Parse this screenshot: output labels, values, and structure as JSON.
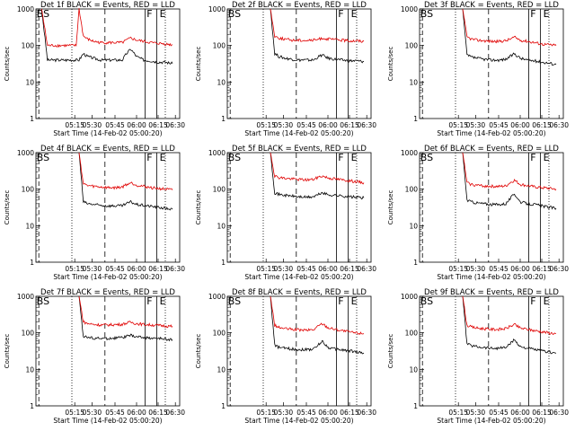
{
  "figure": {
    "time_axis_label": "Start Time (14-Feb-02 05:00:20)",
    "y_axis_label": "Counts/sec"
  },
  "chart_data": [
    {
      "type": "line",
      "title": "Det 1f BLACK = Events, RED = LLD",
      "xlabel": "Start Time (14-Feb-02 05:00:20)",
      "ylabel": "Counts/sec",
      "y_scale": "log",
      "ylim": [
        1,
        1000
      ],
      "x_ticks": [
        "05:15",
        "05:30",
        "05:45",
        "06:00",
        "06:15",
        "06:30"
      ],
      "y_ticks": [
        "1",
        "10",
        "100",
        "1000"
      ],
      "markers": {
        "left_label": "BS",
        "mid_label": "F",
        "right_label": "E"
      },
      "series": [
        {
          "name": "BLACK = Events",
          "color": "#000000",
          "x": [
            4,
            8,
            12,
            16,
            20,
            24,
            28,
            30,
            33,
            36,
            40,
            45,
            50,
            55,
            60,
            63,
            66,
            70,
            75,
            80,
            85,
            90,
            95
          ],
          "values": [
            1000,
            40,
            40,
            40,
            40,
            40,
            40,
            40,
            60,
            50,
            45,
            40,
            40,
            40,
            40,
            60,
            80,
            50,
            40,
            38,
            35,
            35,
            32
          ]
        },
        {
          "name": "RED = LLD",
          "color": "#e00000",
          "x": [
            4,
            8,
            12,
            16,
            20,
            24,
            28,
            30,
            33,
            36,
            40,
            45,
            50,
            55,
            60,
            63,
            66,
            70,
            75,
            80,
            85,
            90,
            95
          ],
          "values": [
            1000,
            100,
            100,
            100,
            100,
            100,
            100,
            1000,
            180,
            150,
            130,
            120,
            120,
            120,
            120,
            140,
            160,
            140,
            130,
            120,
            115,
            110,
            105
          ]
        }
      ]
    },
    {
      "type": "line",
      "title": "Det 2f BLACK = Events, RED = LLD",
      "xlabel": "Start Time (14-Feb-02 05:00:20)",
      "ylabel": "Counts/sec",
      "y_scale": "log",
      "ylim": [
        1,
        1000
      ],
      "x_ticks": [
        "05:15",
        "05:30",
        "05:45",
        "06:00",
        "06:15",
        "06:30"
      ],
      "y_ticks": [
        "1",
        "10",
        "100",
        "1000"
      ],
      "markers": {
        "left_label": "BS",
        "mid_label": "F",
        "right_label": "E"
      },
      "series": [
        {
          "name": "BLACK = Events",
          "color": "#000000",
          "x": [
            30,
            33,
            36,
            40,
            45,
            50,
            55,
            60,
            63,
            66,
            70,
            75,
            80,
            85,
            90,
            95
          ],
          "values": [
            1000,
            60,
            50,
            45,
            42,
            40,
            40,
            40,
            48,
            55,
            45,
            42,
            40,
            38,
            38,
            36
          ]
        },
        {
          "name": "RED = LLD",
          "color": "#e00000",
          "x": [
            30,
            33,
            36,
            40,
            45,
            50,
            55,
            60,
            63,
            66,
            70,
            75,
            80,
            85,
            90,
            95
          ],
          "values": [
            1000,
            180,
            160,
            150,
            140,
            140,
            138,
            140,
            145,
            160,
            150,
            145,
            140,
            135,
            135,
            130
          ]
        }
      ]
    },
    {
      "type": "line",
      "title": "Det 3f BLACK = Events, RED = LLD",
      "xlabel": "Start Time (14-Feb-02 05:00:20)",
      "ylabel": "Counts/sec",
      "y_scale": "log",
      "ylim": [
        1,
        1000
      ],
      "x_ticks": [
        "05:15",
        "05:30",
        "05:45",
        "06:00",
        "06:15",
        "06:30"
      ],
      "y_ticks": [
        "1",
        "10",
        "100",
        "1000"
      ],
      "markers": {
        "left_label": "BS",
        "mid_label": "F",
        "right_label": "E"
      },
      "series": [
        {
          "name": "BLACK = Events",
          "color": "#000000",
          "x": [
            30,
            33,
            36,
            40,
            45,
            50,
            55,
            60,
            63,
            66,
            70,
            75,
            80,
            85,
            90,
            95
          ],
          "values": [
            1000,
            55,
            48,
            45,
            42,
            40,
            40,
            42,
            50,
            60,
            45,
            40,
            38,
            35,
            33,
            30
          ]
        },
        {
          "name": "RED = LLD",
          "color": "#e00000",
          "x": [
            30,
            33,
            36,
            40,
            45,
            50,
            55,
            60,
            63,
            66,
            70,
            75,
            80,
            85,
            90,
            95
          ],
          "values": [
            1000,
            170,
            150,
            140,
            135,
            130,
            130,
            135,
            150,
            170,
            140,
            130,
            120,
            110,
            105,
            100
          ]
        }
      ]
    },
    {
      "type": "line",
      "title": "Det 4f BLACK = Events, RED = LLD",
      "xlabel": "Start Time (14-Feb-02 05:00:20)",
      "ylabel": "Counts/sec",
      "y_scale": "log",
      "ylim": [
        1,
        1000
      ],
      "x_ticks": [
        "05:15",
        "05:30",
        "05:45",
        "06:00",
        "06:15",
        "06:30"
      ],
      "y_ticks": [
        "1",
        "10",
        "100",
        "1000"
      ],
      "markers": {
        "left_label": "BS",
        "mid_label": "F",
        "right_label": "E"
      },
      "series": [
        {
          "name": "BLACK = Events",
          "color": "#000000",
          "x": [
            30,
            33,
            36,
            40,
            45,
            50,
            55,
            60,
            63,
            66,
            70,
            75,
            80,
            85,
            90,
            95
          ],
          "values": [
            1000,
            45,
            40,
            38,
            36,
            35,
            35,
            35,
            40,
            45,
            38,
            36,
            34,
            32,
            30,
            28
          ]
        },
        {
          "name": "RED = LLD",
          "color": "#e00000",
          "x": [
            30,
            33,
            36,
            40,
            45,
            50,
            55,
            60,
            63,
            66,
            70,
            75,
            80,
            85,
            90,
            95
          ],
          "values": [
            1000,
            140,
            125,
            120,
            115,
            110,
            110,
            115,
            135,
            150,
            130,
            120,
            110,
            105,
            100,
            95
          ]
        }
      ]
    },
    {
      "type": "line",
      "title": "Det 5f BLACK = Events, RED = LLD",
      "xlabel": "Start Time (14-Feb-02 05:00:20)",
      "ylabel": "Counts/sec",
      "y_scale": "log",
      "ylim": [
        1,
        1000
      ],
      "x_ticks": [
        "05:15",
        "05:30",
        "05:45",
        "06:00",
        "06:15",
        "06:30"
      ],
      "y_ticks": [
        "1",
        "10",
        "100",
        "1000"
      ],
      "markers": {
        "left_label": "BS",
        "mid_label": "F",
        "right_label": "E"
      },
      "series": [
        {
          "name": "BLACK = Events",
          "color": "#000000",
          "x": [
            30,
            33,
            36,
            40,
            45,
            50,
            55,
            60,
            63,
            66,
            70,
            75,
            80,
            85,
            90,
            95
          ],
          "values": [
            1000,
            80,
            72,
            68,
            65,
            62,
            60,
            62,
            70,
            80,
            70,
            68,
            65,
            62,
            60,
            58
          ]
        },
        {
          "name": "RED = LLD",
          "color": "#e00000",
          "x": [
            30,
            33,
            36,
            40,
            45,
            50,
            55,
            60,
            63,
            66,
            70,
            75,
            80,
            85,
            90,
            95
          ],
          "values": [
            1000,
            230,
            210,
            200,
            190,
            185,
            180,
            185,
            210,
            230,
            205,
            190,
            180,
            170,
            160,
            150
          ]
        }
      ]
    },
    {
      "type": "line",
      "title": "Det 6f BLACK = Events, RED = LLD",
      "xlabel": "Start Time (14-Feb-02 05:00:20)",
      "ylabel": "Counts/sec",
      "y_scale": "log",
      "ylim": [
        1,
        1000
      ],
      "x_ticks": [
        "05:15",
        "05:30",
        "05:45",
        "06:00",
        "06:15",
        "06:30"
      ],
      "y_ticks": [
        "1",
        "10",
        "100",
        "1000"
      ],
      "markers": {
        "left_label": "BS",
        "mid_label": "F",
        "right_label": "E"
      },
      "series": [
        {
          "name": "BLACK = Events",
          "color": "#000000",
          "x": [
            30,
            33,
            36,
            40,
            45,
            50,
            55,
            60,
            63,
            66,
            70,
            75,
            80,
            85,
            90,
            95
          ],
          "values": [
            1000,
            50,
            45,
            42,
            40,
            38,
            38,
            40,
            55,
            75,
            45,
            40,
            38,
            35,
            32,
            30
          ]
        },
        {
          "name": "RED = LLD",
          "color": "#e00000",
          "x": [
            30,
            33,
            36,
            40,
            45,
            50,
            55,
            60,
            63,
            66,
            70,
            75,
            80,
            85,
            90,
            95
          ],
          "values": [
            1000,
            150,
            135,
            128,
            122,
            120,
            118,
            122,
            150,
            175,
            135,
            125,
            115,
            110,
            105,
            100
          ]
        }
      ]
    },
    {
      "type": "line",
      "title": "Det 7f BLACK = Events, RED = LLD",
      "xlabel": "Start Time (14-Feb-02 05:00:20)",
      "ylabel": "Counts/sec",
      "y_scale": "log",
      "ylim": [
        1,
        1000
      ],
      "x_ticks": [
        "05:15",
        "05:30",
        "05:45",
        "06:00",
        "06:15",
        "06:30"
      ],
      "y_ticks": [
        "1",
        "10",
        "100",
        "1000"
      ],
      "markers": {
        "left_label": "BS",
        "mid_label": "F",
        "right_label": "E"
      },
      "series": [
        {
          "name": "BLACK = Events",
          "color": "#000000",
          "x": [
            30,
            33,
            36,
            40,
            45,
            50,
            55,
            60,
            63,
            66,
            70,
            75,
            80,
            85,
            90,
            95
          ],
          "values": [
            1000,
            80,
            75,
            72,
            70,
            70,
            72,
            75,
            80,
            85,
            78,
            75,
            72,
            70,
            68,
            65
          ]
        },
        {
          "name": "RED = LLD",
          "color": "#e00000",
          "x": [
            30,
            33,
            36,
            40,
            45,
            50,
            55,
            60,
            63,
            66,
            70,
            75,
            80,
            85,
            90,
            95
          ],
          "values": [
            1000,
            200,
            180,
            170,
            165,
            165,
            168,
            172,
            185,
            195,
            180,
            170,
            165,
            160,
            155,
            150
          ]
        }
      ]
    },
    {
      "type": "line",
      "title": "Det 8f BLACK = Events, RED = LLD",
      "xlabel": "Start Time (14-Feb-02 05:00:20)",
      "ylabel": "Counts/sec",
      "y_scale": "log",
      "ylim": [
        1,
        1000
      ],
      "x_ticks": [
        "05:15",
        "05:30",
        "05:45",
        "06:00",
        "06:15",
        "06:30"
      ],
      "y_ticks": [
        "1",
        "10",
        "100",
        "1000"
      ],
      "markers": {
        "left_label": "BS",
        "mid_label": "F",
        "right_label": "E"
      },
      "series": [
        {
          "name": "BLACK = Events",
          "color": "#000000",
          "x": [
            30,
            33,
            36,
            40,
            45,
            50,
            55,
            60,
            63,
            66,
            70,
            75,
            80,
            85,
            90,
            95
          ],
          "values": [
            1000,
            45,
            40,
            38,
            36,
            35,
            35,
            36,
            45,
            60,
            40,
            36,
            34,
            32,
            30,
            28
          ]
        },
        {
          "name": "RED = LLD",
          "color": "#e00000",
          "x": [
            30,
            33,
            36,
            40,
            45,
            50,
            55,
            60,
            63,
            66,
            70,
            75,
            80,
            85,
            90,
            95
          ],
          "values": [
            1000,
            160,
            140,
            130,
            125,
            120,
            118,
            122,
            150,
            180,
            140,
            125,
            115,
            105,
            100,
            95
          ]
        }
      ]
    },
    {
      "type": "line",
      "title": "Det 9f BLACK = Events, RED = LLD",
      "xlabel": "Start Time (14-Feb-02 05:00:20)",
      "ylabel": "Counts/sec",
      "y_scale": "log",
      "ylim": [
        1,
        1000
      ],
      "x_ticks": [
        "05:15",
        "05:30",
        "05:45",
        "06:00",
        "06:15",
        "06:30"
      ],
      "y_ticks": [
        "1",
        "10",
        "100",
        "1000"
      ],
      "markers": {
        "left_label": "BS",
        "mid_label": "F",
        "right_label": "E"
      },
      "series": [
        {
          "name": "BLACK = Events",
          "color": "#000000",
          "x": [
            30,
            33,
            36,
            40,
            45,
            50,
            55,
            60,
            63,
            66,
            70,
            75,
            80,
            85,
            90,
            95
          ],
          "values": [
            1000,
            50,
            45,
            42,
            40,
            38,
            38,
            40,
            50,
            65,
            42,
            38,
            35,
            32,
            30,
            28
          ]
        },
        {
          "name": "RED = LLD",
          "color": "#e00000",
          "x": [
            30,
            33,
            36,
            40,
            45,
            50,
            55,
            60,
            63,
            66,
            70,
            75,
            80,
            85,
            90,
            95
          ],
          "values": [
            1000,
            160,
            145,
            135,
            130,
            125,
            125,
            130,
            150,
            170,
            135,
            125,
            115,
            108,
            100,
            95
          ]
        }
      ]
    }
  ]
}
